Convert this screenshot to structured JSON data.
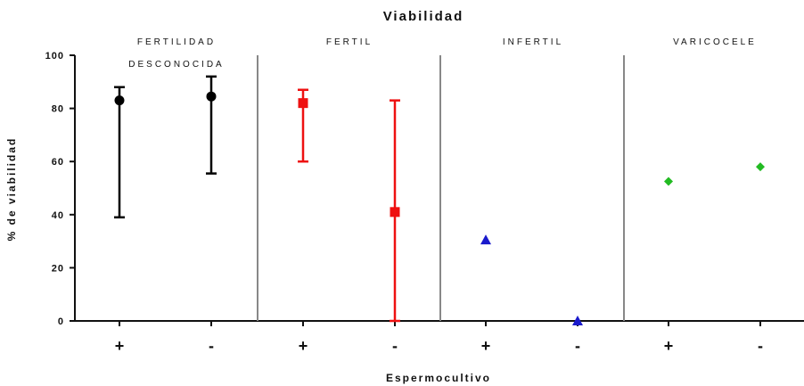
{
  "chart_data": {
    "type": "scatter",
    "title": "Viabilidad",
    "xlabel": "Espermocultivo",
    "ylabel": "% de viabilidad",
    "ylim": [
      0,
      100
    ],
    "yticks": [
      0,
      20,
      40,
      60,
      80,
      100
    ],
    "grid": false,
    "categories": [
      "+",
      "-",
      "+",
      "-",
      "+",
      "-",
      "+",
      "-"
    ],
    "groups": [
      {
        "label_lines": [
          "FERTILIDAD",
          "DESCONOCIDA"
        ],
        "color": "#000000",
        "marker": "circle",
        "points": [
          0,
          1
        ]
      },
      {
        "label_lines": [
          "FERTIL"
        ],
        "color": "#ee1111",
        "marker": "square",
        "points": [
          2,
          3
        ]
      },
      {
        "label_lines": [
          "INFERTIL"
        ],
        "color": "#1a1acc",
        "marker": "triangle",
        "points": [
          4,
          5
        ]
      },
      {
        "label_lines": [
          "VARICOCELE"
        ],
        "color": "#22bb22",
        "marker": "diamond",
        "points": [
          6,
          7
        ]
      }
    ],
    "points": [
      {
        "category": "+",
        "group": "FERTILIDAD DESCONOCIDA",
        "value": 83,
        "err_low": 39,
        "err_high": 88
      },
      {
        "category": "-",
        "group": "FERTILIDAD DESCONOCIDA",
        "value": 84.5,
        "err_low": 55.5,
        "err_high": 92
      },
      {
        "category": "+",
        "group": "FERTIL",
        "value": 82,
        "err_low": 60,
        "err_high": 87
      },
      {
        "category": "-",
        "group": "FERTIL",
        "value": 41,
        "err_low": 0,
        "err_high": 83
      },
      {
        "category": "+",
        "group": "INFERTIL",
        "value": 30.5
      },
      {
        "category": "-",
        "group": "INFERTIL",
        "value": 0
      },
      {
        "category": "+",
        "group": "VARICOCELE",
        "value": 52.5
      },
      {
        "category": "-",
        "group": "VARICOCELE",
        "value": 58
      }
    ]
  }
}
